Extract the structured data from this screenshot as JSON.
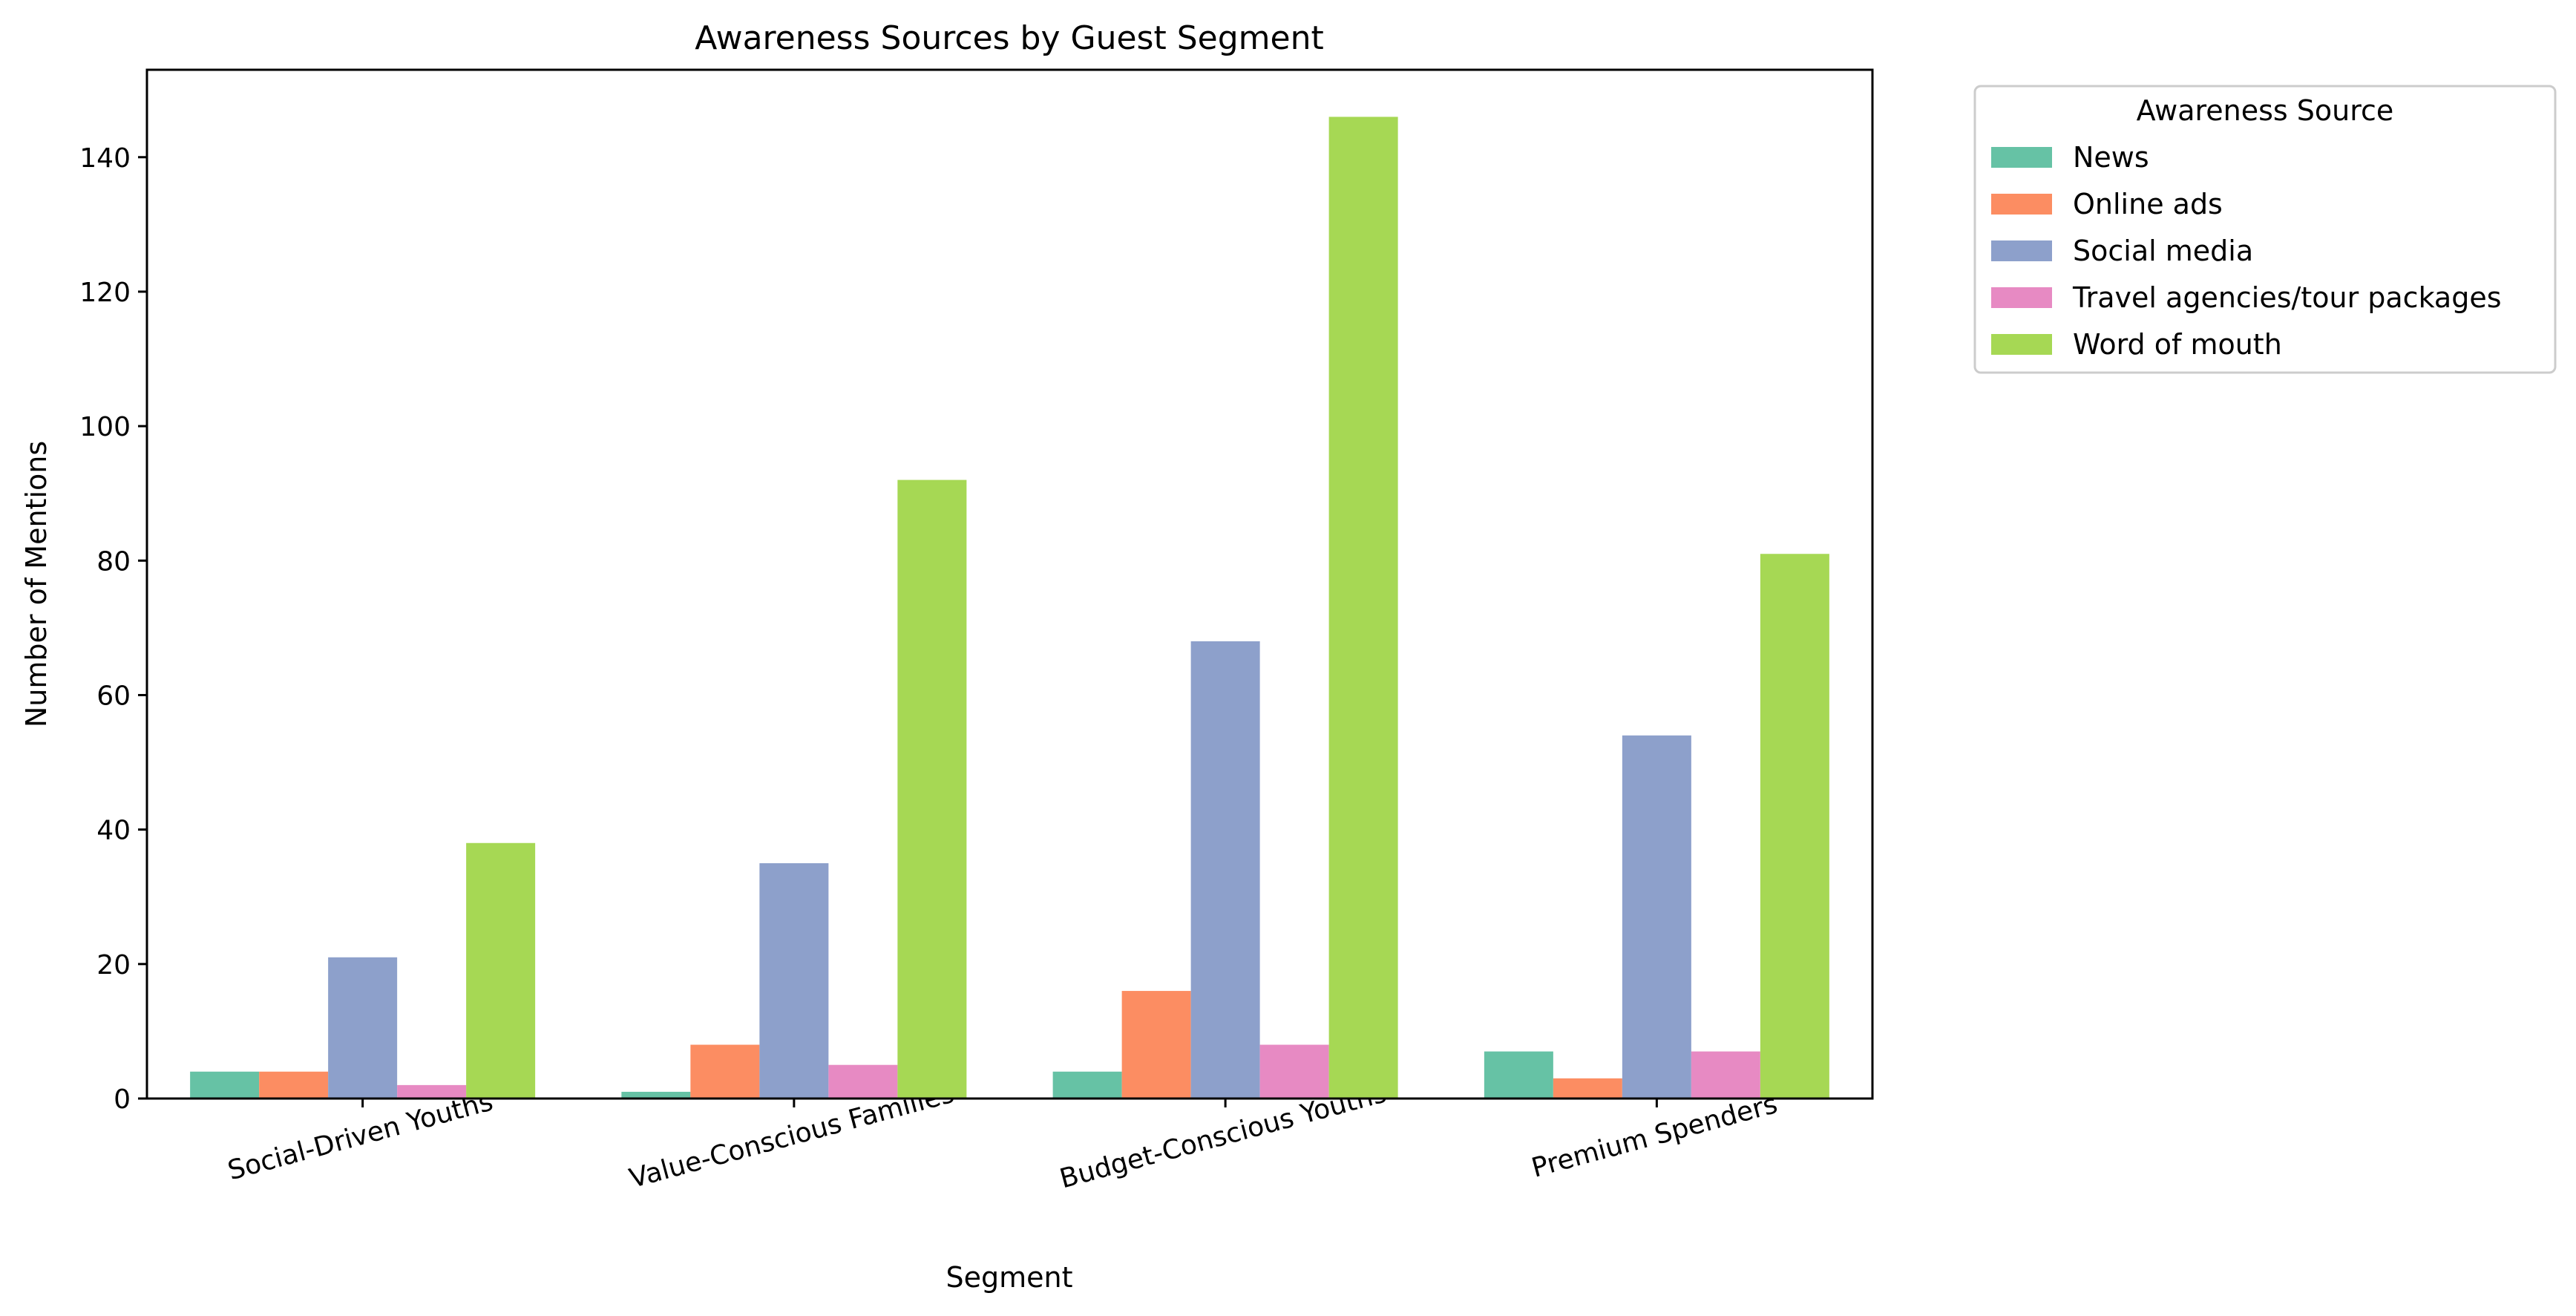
{
  "chart_data": {
    "type": "bar",
    "title": "Awareness Sources by Guest Segment",
    "xlabel": "Segment",
    "ylabel": "Number of Mentions",
    "ylim": [
      0,
      153
    ],
    "yticks": [
      0,
      20,
      40,
      60,
      80,
      100,
      120,
      140
    ],
    "categories": [
      "Social-Driven Youths",
      "Value-Conscious Families",
      "Budget-Conscious Youths",
      "Premium Spenders"
    ],
    "legend": {
      "title": "Awareness Source",
      "placement": "outside-upper-right"
    },
    "grid": false,
    "series": [
      {
        "name": "News",
        "color": "#66c2a5",
        "values": [
          4,
          1,
          4,
          7
        ]
      },
      {
        "name": "Online ads",
        "color": "#fc8d62",
        "values": [
          4,
          8,
          16,
          3
        ]
      },
      {
        "name": "Social media",
        "color": "#8da0cb",
        "values": [
          21,
          35,
          68,
          54
        ]
      },
      {
        "name": "Travel agencies/tour packages",
        "color": "#e78ac3",
        "values": [
          2,
          5,
          8,
          7
        ]
      },
      {
        "name": "Word of mouth",
        "color": "#a6d854",
        "values": [
          38,
          92,
          146,
          81
        ]
      }
    ]
  }
}
